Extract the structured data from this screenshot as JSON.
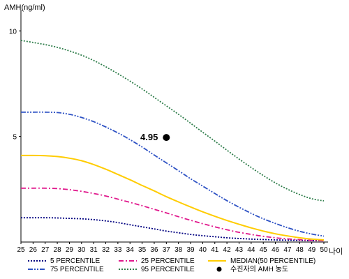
{
  "chart_data": {
    "type": "line",
    "ylabel": "AMH(ng/ml)",
    "xlabel": "나이",
    "xlim": [
      25,
      50
    ],
    "ylim": [
      0,
      11
    ],
    "x_ticks": [
      25,
      26,
      27,
      28,
      29,
      30,
      31,
      32,
      33,
      34,
      35,
      36,
      37,
      38,
      39,
      40,
      41,
      42,
      43,
      44,
      45,
      46,
      47,
      48,
      49,
      50
    ],
    "y_ticks": [
      5,
      10
    ],
    "x": [
      25,
      26,
      27,
      28,
      29,
      30,
      31,
      32,
      33,
      34,
      35,
      36,
      37,
      38,
      39,
      40,
      41,
      42,
      43,
      44,
      45,
      46,
      47,
      48,
      49,
      50
    ],
    "series": [
      {
        "name": "5 PERCENTILE",
        "color": "#000080",
        "dash": "dotted",
        "values": [
          1.15,
          1.15,
          1.15,
          1.14,
          1.12,
          1.1,
          1.06,
          1.0,
          0.92,
          0.82,
          0.72,
          0.62,
          0.52,
          0.44,
          0.36,
          0.3,
          0.25,
          0.2,
          0.17,
          0.14,
          0.12,
          0.1,
          0.09,
          0.08,
          0.07,
          0.06
        ]
      },
      {
        "name": "25 PERCENTILE",
        "color": "#e0188c",
        "dash": "dashdot",
        "values": [
          2.55,
          2.55,
          2.55,
          2.53,
          2.48,
          2.4,
          2.3,
          2.18,
          2.03,
          1.88,
          1.72,
          1.55,
          1.38,
          1.2,
          1.03,
          0.87,
          0.72,
          0.58,
          0.46,
          0.36,
          0.27,
          0.2,
          0.15,
          0.11,
          0.08,
          0.06
        ]
      },
      {
        "name": "MEDIAN(50 PERCENTILE)",
        "color": "#ffcc00",
        "dash": "solid",
        "values": [
          4.1,
          4.1,
          4.09,
          4.05,
          3.97,
          3.85,
          3.67,
          3.45,
          3.2,
          2.95,
          2.68,
          2.42,
          2.15,
          1.9,
          1.66,
          1.43,
          1.22,
          1.02,
          0.84,
          0.67,
          0.52,
          0.39,
          0.29,
          0.2,
          0.14,
          0.1
        ]
      },
      {
        "name": "75 PERCENTILE",
        "color": "#2e52c4",
        "dash": "dashdotdot",
        "values": [
          6.15,
          6.15,
          6.15,
          6.13,
          6.05,
          5.9,
          5.7,
          5.45,
          5.17,
          4.85,
          4.5,
          4.12,
          3.75,
          3.38,
          3.0,
          2.65,
          2.3,
          1.96,
          1.65,
          1.36,
          1.1,
          0.88,
          0.68,
          0.51,
          0.38,
          0.28
        ]
      },
      {
        "name": "95 PERCENTILE",
        "color": "#2e7d4a",
        "dash": "dotted",
        "values": [
          9.55,
          9.45,
          9.35,
          9.22,
          9.05,
          8.85,
          8.6,
          8.3,
          7.97,
          7.62,
          7.25,
          6.85,
          6.45,
          6.05,
          5.63,
          5.2,
          4.78,
          4.35,
          3.93,
          3.53,
          3.15,
          2.8,
          2.5,
          2.25,
          2.05,
          1.95
        ]
      }
    ],
    "highlight_point": {
      "name": "수진자의 AMH 농도",
      "x": 37,
      "y": 4.95,
      "label": "4.95",
      "color": "#000000"
    },
    "legend": {
      "placement": "bottom",
      "rows": [
        [
          "5 PERCENTILE",
          "25 PERCENTILE",
          "MEDIAN(50 PERCENTILE)"
        ],
        [
          "75 PERCENTILE",
          "95 PERCENTILE",
          "수진자의 AMH 농도"
        ]
      ]
    },
    "grid": false
  }
}
